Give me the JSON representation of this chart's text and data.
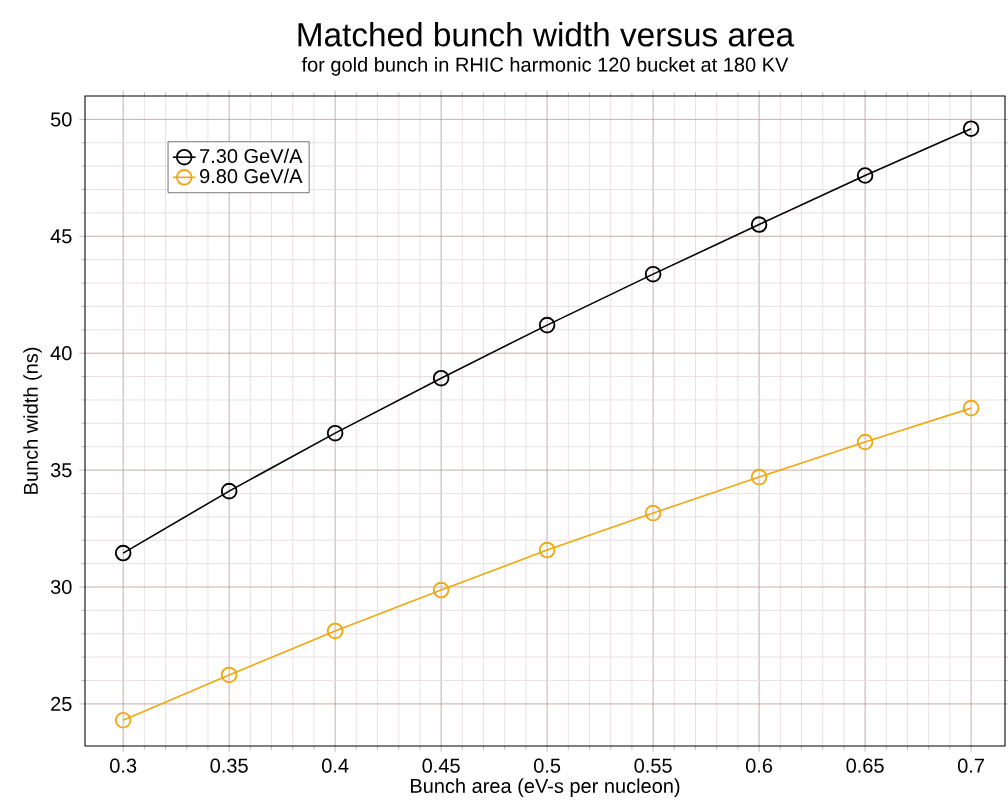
{
  "chart_data": {
    "type": "line",
    "title": "Matched bunch width versus area",
    "subtitle": "for gold bunch in RHIC harmonic 120 bucket at 180 KV",
    "xlabel": "Bunch area (eV-s per nucleon)",
    "ylabel": "Bunch width (ns)",
    "x": [
      0.3,
      0.35,
      0.4,
      0.45,
      0.5,
      0.55,
      0.6,
      0.65,
      0.7
    ],
    "series": [
      {
        "name": "7.30 GeV/A",
        "color": "#000000",
        "values": [
          31.45,
          34.1,
          36.58,
          38.93,
          41.2,
          43.38,
          45.5,
          47.6,
          49.6
        ]
      },
      {
        "name": "9.80 GeV/A",
        "color": "#f0a810",
        "values": [
          24.3,
          26.24,
          28.12,
          29.87,
          31.58,
          33.16,
          34.7,
          36.2,
          37.65
        ]
      }
    ],
    "xlim": [
      0.282,
      0.716
    ],
    "ylim": [
      23.2,
      51
    ],
    "xticks": [
      0.3,
      0.35,
      0.4,
      0.45,
      0.5,
      0.55,
      0.6,
      0.65,
      0.7
    ],
    "yticks": [
      25,
      30,
      35,
      40,
      45,
      50
    ],
    "grid": true,
    "legend": "top left",
    "marker": "circle",
    "line_style": "solid"
  }
}
